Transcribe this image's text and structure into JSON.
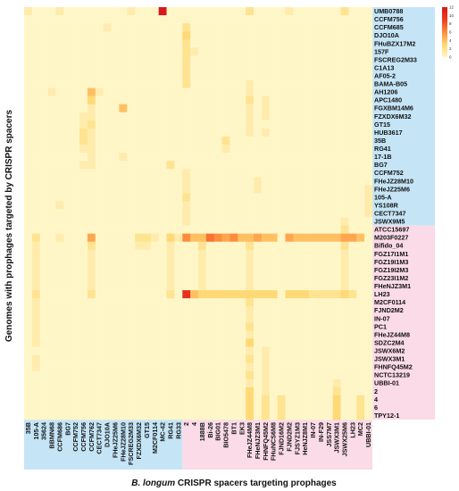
{
  "chart_data": {
    "type": "heatmap",
    "title": "",
    "xlabel": "B. longum CRISPR spacers targeting prophages",
    "xlabel_italic": "B. longum",
    "xlabel_rest": " CRISPR spacers targeting prophages",
    "ylabel": "Genomes with prophages targeted by CRISPR spacers",
    "rows": [
      "UMB0788",
      "CCFM756",
      "CCFM685",
      "DJO10A",
      "FHuBZX17M2",
      "157F",
      "FSCREG2M33",
      "C1A13",
      "AF05-2",
      "BAMA-B05",
      "AH1206",
      "APC1480",
      "FGXBM14M6",
      "FZXDX6M32",
      "GT15",
      "HUB3617",
      "35B",
      "RG41",
      "17-1B",
      "BG7",
      "CCFM752",
      "FHeJZ28M10",
      "FHeJZ25M6",
      "105-A",
      "YS108R",
      "CECT7347",
      "JSWX9M5",
      "ATCC15697",
      "M203F0227",
      "Bifido_04",
      "FGZ17I1M1",
      "FGZ19I1M3",
      "FGZ19I2M3",
      "FGZ23I1M2",
      "FHeNJZ3M1",
      "LH23",
      "M2CF0114",
      "FJND2M2",
      "IN-07",
      "PC1",
      "FHeJZ44M8",
      "SDZC2M4",
      "JSWX6M2",
      "JSWX3M1",
      "FHNFQ45M2",
      "NCTC13219",
      "UBBI-01",
      "2",
      "4",
      "6",
      "TPY12-1"
    ],
    "row_group_colors": {
      "blue": "#c5e5f7",
      "pink": "#fadbe7"
    },
    "row_groups": [
      {
        "start": 0,
        "end": 26,
        "color": "blue"
      },
      {
        "start": 27,
        "end": 50,
        "color": "pink"
      }
    ],
    "columns": [
      "35B",
      "105-A",
      "35624",
      "BBMN68",
      "CCFM686",
      "BG7",
      "CCFM752",
      "CCFM756",
      "CCFM762",
      "CECT7347",
      "DJO10A",
      "FHeJZ25M6",
      "FHeJZ28M10",
      "FSCREG2M33",
      "FZXDX6M32",
      "GT15",
      "M2CF0114",
      "MC-42",
      "RG41",
      "RG33",
      "2",
      "4",
      "1888B",
      "Bi-26",
      "BIG01",
      "BIO5478",
      "BT1",
      "EK3",
      "FHeJZ44M8",
      "FHeNJZ3M1",
      "FHNFQ45M2",
      "FHuNCS6M8",
      "FJND16M2",
      "FJND2M2",
      "FJSYZ1M3",
      "HeNJZ8M1",
      "IN-07",
      "IN-F29",
      "JSS7M7",
      "JSWX3M1",
      "JSWX25M6",
      "LH23",
      "MC2",
      "UBBI-01"
    ],
    "col_group_colors": {
      "blue": "#c5e5f7",
      "pink": "#fadbe7"
    },
    "col_groups": [
      {
        "start": 0,
        "end": 19,
        "color": "blue"
      },
      {
        "start": 20,
        "end": 43,
        "color": "pink"
      }
    ],
    "colorbar": {
      "min": 0,
      "max": 12,
      "ticks": [
        "12",
        "10",
        "8",
        "6",
        "4",
        "2",
        "0"
      ],
      "colors": [
        "#fff6c8",
        "#fed976",
        "#fd8d3c",
        "#f03b20",
        "#d7191c"
      ]
    },
    "values": [
      {
        "r": 0,
        "c": 0,
        "v": 1
      },
      {
        "r": 0,
        "c": 4,
        "v": 1
      },
      {
        "r": 0,
        "c": 13,
        "v": 1
      },
      {
        "r": 0,
        "c": 17,
        "v": 12
      },
      {
        "r": 0,
        "c": 28,
        "v": 2
      },
      {
        "r": 0,
        "c": 33,
        "v": 1
      },
      {
        "r": 0,
        "c": 40,
        "v": 2
      },
      {
        "r": 2,
        "c": 10,
        "v": 1
      },
      {
        "r": 2,
        "c": 20,
        "v": 2
      },
      {
        "r": 3,
        "c": 20,
        "v": 3
      },
      {
        "r": 4,
        "c": 20,
        "v": 2
      },
      {
        "r": 5,
        "c": 20,
        "v": 2
      },
      {
        "r": 5,
        "c": 21,
        "v": 1
      },
      {
        "r": 6,
        "c": 20,
        "v": 2
      },
      {
        "r": 7,
        "c": 20,
        "v": 2
      },
      {
        "r": 8,
        "c": 20,
        "v": 2
      },
      {
        "r": 9,
        "c": 20,
        "v": 2
      },
      {
        "r": 9,
        "c": 28,
        "v": 1
      },
      {
        "r": 10,
        "c": 3,
        "v": 1
      },
      {
        "r": 10,
        "c": 8,
        "v": 4
      },
      {
        "r": 10,
        "c": 9,
        "v": 1
      },
      {
        "r": 10,
        "c": 28,
        "v": 1
      },
      {
        "r": 11,
        "c": 8,
        "v": 3
      },
      {
        "r": 11,
        "c": 28,
        "v": 2
      },
      {
        "r": 11,
        "c": 30,
        "v": 1
      },
      {
        "r": 12,
        "c": 8,
        "v": 1
      },
      {
        "r": 12,
        "c": 12,
        "v": 4
      },
      {
        "r": 12,
        "c": 28,
        "v": 1
      },
      {
        "r": 12,
        "c": 30,
        "v": 1
      },
      {
        "r": 13,
        "c": 7,
        "v": 1
      },
      {
        "r": 13,
        "c": 8,
        "v": 1
      },
      {
        "r": 13,
        "c": 28,
        "v": 1
      },
      {
        "r": 13,
        "c": 30,
        "v": 1
      },
      {
        "r": 14,
        "c": 7,
        "v": 1
      },
      {
        "r": 14,
        "c": 8,
        "v": 2
      },
      {
        "r": 14,
        "c": 28,
        "v": 1
      },
      {
        "r": 15,
        "c": 7,
        "v": 2
      },
      {
        "r": 15,
        "c": 8,
        "v": 1
      },
      {
        "r": 15,
        "c": 28,
        "v": 1
      },
      {
        "r": 15,
        "c": 30,
        "v": 1
      },
      {
        "r": 16,
        "c": 7,
        "v": 2
      },
      {
        "r": 16,
        "c": 8,
        "v": 1
      },
      {
        "r": 16,
        "c": 25,
        "v": 2
      },
      {
        "r": 17,
        "c": 7,
        "v": 1
      },
      {
        "r": 17,
        "c": 8,
        "v": 1
      },
      {
        "r": 17,
        "c": 25,
        "v": 1
      },
      {
        "r": 18,
        "c": 8,
        "v": 1
      },
      {
        "r": 18,
        "c": 12,
        "v": 1
      },
      {
        "r": 19,
        "c": 7,
        "v": 1
      },
      {
        "r": 19,
        "c": 8,
        "v": 1
      },
      {
        "r": 19,
        "c": 18,
        "v": 2
      },
      {
        "r": 20,
        "c": 20,
        "v": 1
      },
      {
        "r": 21,
        "c": 20,
        "v": 1
      },
      {
        "r": 21,
        "c": 29,
        "v": 1
      },
      {
        "r": 22,
        "c": 20,
        "v": 1
      },
      {
        "r": 22,
        "c": 29,
        "v": 1
      },
      {
        "r": 22,
        "c": 43,
        "v": 1
      },
      {
        "r": 23,
        "c": 20,
        "v": 2
      },
      {
        "r": 23,
        "c": 43,
        "v": 1
      },
      {
        "r": 24,
        "c": 4,
        "v": 1
      },
      {
        "r": 24,
        "c": 20,
        "v": 1
      },
      {
        "r": 24,
        "c": 43,
        "v": 1
      },
      {
        "r": 25,
        "c": 20,
        "v": 1
      },
      {
        "r": 25,
        "c": 43,
        "v": 1
      },
      {
        "r": 26,
        "c": 20,
        "v": 1
      },
      {
        "r": 26,
        "c": 40,
        "v": 1
      },
      {
        "r": 27,
        "c": 40,
        "v": 2
      },
      {
        "r": 28,
        "c": 1,
        "v": 2
      },
      {
        "r": 28,
        "c": 4,
        "v": 1
      },
      {
        "r": 28,
        "c": 8,
        "v": 5
      },
      {
        "r": 28,
        "c": 14,
        "v": 2
      },
      {
        "r": 28,
        "c": 15,
        "v": 2
      },
      {
        "r": 28,
        "c": 16,
        "v": 1
      },
      {
        "r": 28,
        "c": 18,
        "v": 3
      },
      {
        "r": 28,
        "c": 19,
        "v": 1
      },
      {
        "r": 28,
        "c": 20,
        "v": 6
      },
      {
        "r": 28,
        "c": 21,
        "v": 4
      },
      {
        "r": 28,
        "c": 22,
        "v": 4
      },
      {
        "r": 28,
        "c": 23,
        "v": 7
      },
      {
        "r": 28,
        "c": 24,
        "v": 6
      },
      {
        "r": 28,
        "c": 25,
        "v": 5
      },
      {
        "r": 28,
        "c": 26,
        "v": 6
      },
      {
        "r": 28,
        "c": 27,
        "v": 4
      },
      {
        "r": 28,
        "c": 28,
        "v": 4
      },
      {
        "r": 28,
        "c": 29,
        "v": 5
      },
      {
        "r": 28,
        "c": 30,
        "v": 4
      },
      {
        "r": 28,
        "c": 31,
        "v": 4
      },
      {
        "r": 28,
        "c": 33,
        "v": 5
      },
      {
        "r": 28,
        "c": 34,
        "v": 4
      },
      {
        "r": 28,
        "c": 35,
        "v": 4
      },
      {
        "r": 28,
        "c": 36,
        "v": 4
      },
      {
        "r": 28,
        "c": 37,
        "v": 4
      },
      {
        "r": 28,
        "c": 38,
        "v": 4
      },
      {
        "r": 28,
        "c": 39,
        "v": 4
      },
      {
        "r": 28,
        "c": 40,
        "v": 5
      },
      {
        "r": 28,
        "c": 41,
        "v": 5
      },
      {
        "r": 28,
        "c": 42,
        "v": 4
      },
      {
        "r": 29,
        "c": 1,
        "v": 1
      },
      {
        "r": 29,
        "c": 8,
        "v": 2
      },
      {
        "r": 29,
        "c": 14,
        "v": 1
      },
      {
        "r": 29,
        "c": 15,
        "v": 1
      },
      {
        "r": 29,
        "c": 18,
        "v": 1
      },
      {
        "r": 29,
        "c": 22,
        "v": 2
      },
      {
        "r": 29,
        "c": 28,
        "v": 2
      },
      {
        "r": 29,
        "c": 40,
        "v": 2
      },
      {
        "r": 30,
        "c": 1,
        "v": 1
      },
      {
        "r": 30,
        "c": 8,
        "v": 1
      },
      {
        "r": 30,
        "c": 18,
        "v": 1
      },
      {
        "r": 30,
        "c": 22,
        "v": 1
      },
      {
        "r": 30,
        "c": 28,
        "v": 1
      },
      {
        "r": 30,
        "c": 40,
        "v": 1
      },
      {
        "r": 31,
        "c": 1,
        "v": 1
      },
      {
        "r": 31,
        "c": 8,
        "v": 1
      },
      {
        "r": 31,
        "c": 18,
        "v": 1
      },
      {
        "r": 31,
        "c": 22,
        "v": 1
      },
      {
        "r": 31,
        "c": 28,
        "v": 1
      },
      {
        "r": 31,
        "c": 40,
        "v": 1
      },
      {
        "r": 32,
        "c": 1,
        "v": 1
      },
      {
        "r": 32,
        "c": 8,
        "v": 1
      },
      {
        "r": 32,
        "c": 18,
        "v": 1
      },
      {
        "r": 32,
        "c": 22,
        "v": 1
      },
      {
        "r": 32,
        "c": 28,
        "v": 1
      },
      {
        "r": 32,
        "c": 40,
        "v": 1
      },
      {
        "r": 33,
        "c": 1,
        "v": 1
      },
      {
        "r": 33,
        "c": 8,
        "v": 1
      },
      {
        "r": 33,
        "c": 18,
        "v": 1
      },
      {
        "r": 33,
        "c": 22,
        "v": 1
      },
      {
        "r": 33,
        "c": 28,
        "v": 1
      },
      {
        "r": 33,
        "c": 40,
        "v": 1
      },
      {
        "r": 34,
        "c": 1,
        "v": 1
      },
      {
        "r": 34,
        "c": 8,
        "v": 1
      },
      {
        "r": 34,
        "c": 18,
        "v": 1
      },
      {
        "r": 34,
        "c": 22,
        "v": 1
      },
      {
        "r": 34,
        "c": 28,
        "v": 1
      },
      {
        "r": 34,
        "c": 40,
        "v": 1
      },
      {
        "r": 35,
        "c": 1,
        "v": 2
      },
      {
        "r": 35,
        "c": 8,
        "v": 2
      },
      {
        "r": 35,
        "c": 18,
        "v": 2
      },
      {
        "r": 35,
        "c": 20,
        "v": 10
      },
      {
        "r": 35,
        "c": 21,
        "v": 4
      },
      {
        "r": 35,
        "c": 22,
        "v": 3
      },
      {
        "r": 35,
        "c": 23,
        "v": 3
      },
      {
        "r": 35,
        "c": 24,
        "v": 3
      },
      {
        "r": 35,
        "c": 25,
        "v": 3
      },
      {
        "r": 35,
        "c": 26,
        "v": 3
      },
      {
        "r": 35,
        "c": 27,
        "v": 3
      },
      {
        "r": 35,
        "c": 28,
        "v": 3
      },
      {
        "r": 35,
        "c": 29,
        "v": 3
      },
      {
        "r": 35,
        "c": 30,
        "v": 3
      },
      {
        "r": 35,
        "c": 31,
        "v": 3
      },
      {
        "r": 35,
        "c": 33,
        "v": 3
      },
      {
        "r": 35,
        "c": 34,
        "v": 3
      },
      {
        "r": 35,
        "c": 35,
        "v": 3
      },
      {
        "r": 35,
        "c": 36,
        "v": 2
      },
      {
        "r": 35,
        "c": 37,
        "v": 2
      },
      {
        "r": 35,
        "c": 38,
        "v": 2
      },
      {
        "r": 35,
        "c": 39,
        "v": 2
      },
      {
        "r": 35,
        "c": 40,
        "v": 3
      },
      {
        "r": 35,
        "c": 41,
        "v": 2
      },
      {
        "r": 36,
        "c": 1,
        "v": 1
      },
      {
        "r": 36,
        "c": 28,
        "v": 2
      },
      {
        "r": 37,
        "c": 1,
        "v": 1
      },
      {
        "r": 37,
        "c": 28,
        "v": 1
      },
      {
        "r": 38,
        "c": 1,
        "v": 1
      },
      {
        "r": 38,
        "c": 28,
        "v": 1
      },
      {
        "r": 39,
        "c": 1,
        "v": 1
      },
      {
        "r": 39,
        "c": 28,
        "v": 2
      },
      {
        "r": 40,
        "c": 1,
        "v": 1
      },
      {
        "r": 40,
        "c": 28,
        "v": 1
      },
      {
        "r": 41,
        "c": 1,
        "v": 1
      },
      {
        "r": 41,
        "c": 28,
        "v": 3
      },
      {
        "r": 42,
        "c": 28,
        "v": 1
      },
      {
        "r": 42,
        "c": 30,
        "v": 1
      },
      {
        "r": 43,
        "c": 1,
        "v": 1
      },
      {
        "r": 43,
        "c": 28,
        "v": 2
      },
      {
        "r": 43,
        "c": 30,
        "v": 1
      },
      {
        "r": 44,
        "c": 1,
        "v": 1
      },
      {
        "r": 44,
        "c": 28,
        "v": 1
      },
      {
        "r": 44,
        "c": 30,
        "v": 1
      },
      {
        "r": 45,
        "c": 28,
        "v": 2
      },
      {
        "r": 45,
        "c": 30,
        "v": 1
      },
      {
        "r": 46,
        "c": 28,
        "v": 1
      },
      {
        "r": 46,
        "c": 30,
        "v": 1
      },
      {
        "r": 46,
        "c": 39,
        "v": 1
      },
      {
        "r": 47,
        "c": 28,
        "v": 3
      },
      {
        "r": 47,
        "c": 30,
        "v": 1
      },
      {
        "r": 47,
        "c": 39,
        "v": 2
      },
      {
        "r": 48,
        "c": 28,
        "v": 3
      },
      {
        "r": 48,
        "c": 30,
        "v": 2
      },
      {
        "r": 48,
        "c": 32,
        "v": 2
      },
      {
        "r": 48,
        "c": 39,
        "v": 3
      },
      {
        "r": 48,
        "c": 42,
        "v": 2
      },
      {
        "r": 49,
        "c": 28,
        "v": 3
      },
      {
        "r": 49,
        "c": 30,
        "v": 2
      },
      {
        "r": 49,
        "c": 32,
        "v": 2
      },
      {
        "r": 49,
        "c": 39,
        "v": 3
      },
      {
        "r": 49,
        "c": 42,
        "v": 2
      },
      {
        "r": 50,
        "c": 28,
        "v": 3
      },
      {
        "r": 50,
        "c": 30,
        "v": 2
      },
      {
        "r": 50,
        "c": 32,
        "v": 2
      },
      {
        "r": 50,
        "c": 39,
        "v": 3
      },
      {
        "r": 50,
        "c": 42,
        "v": 2
      }
    ]
  }
}
